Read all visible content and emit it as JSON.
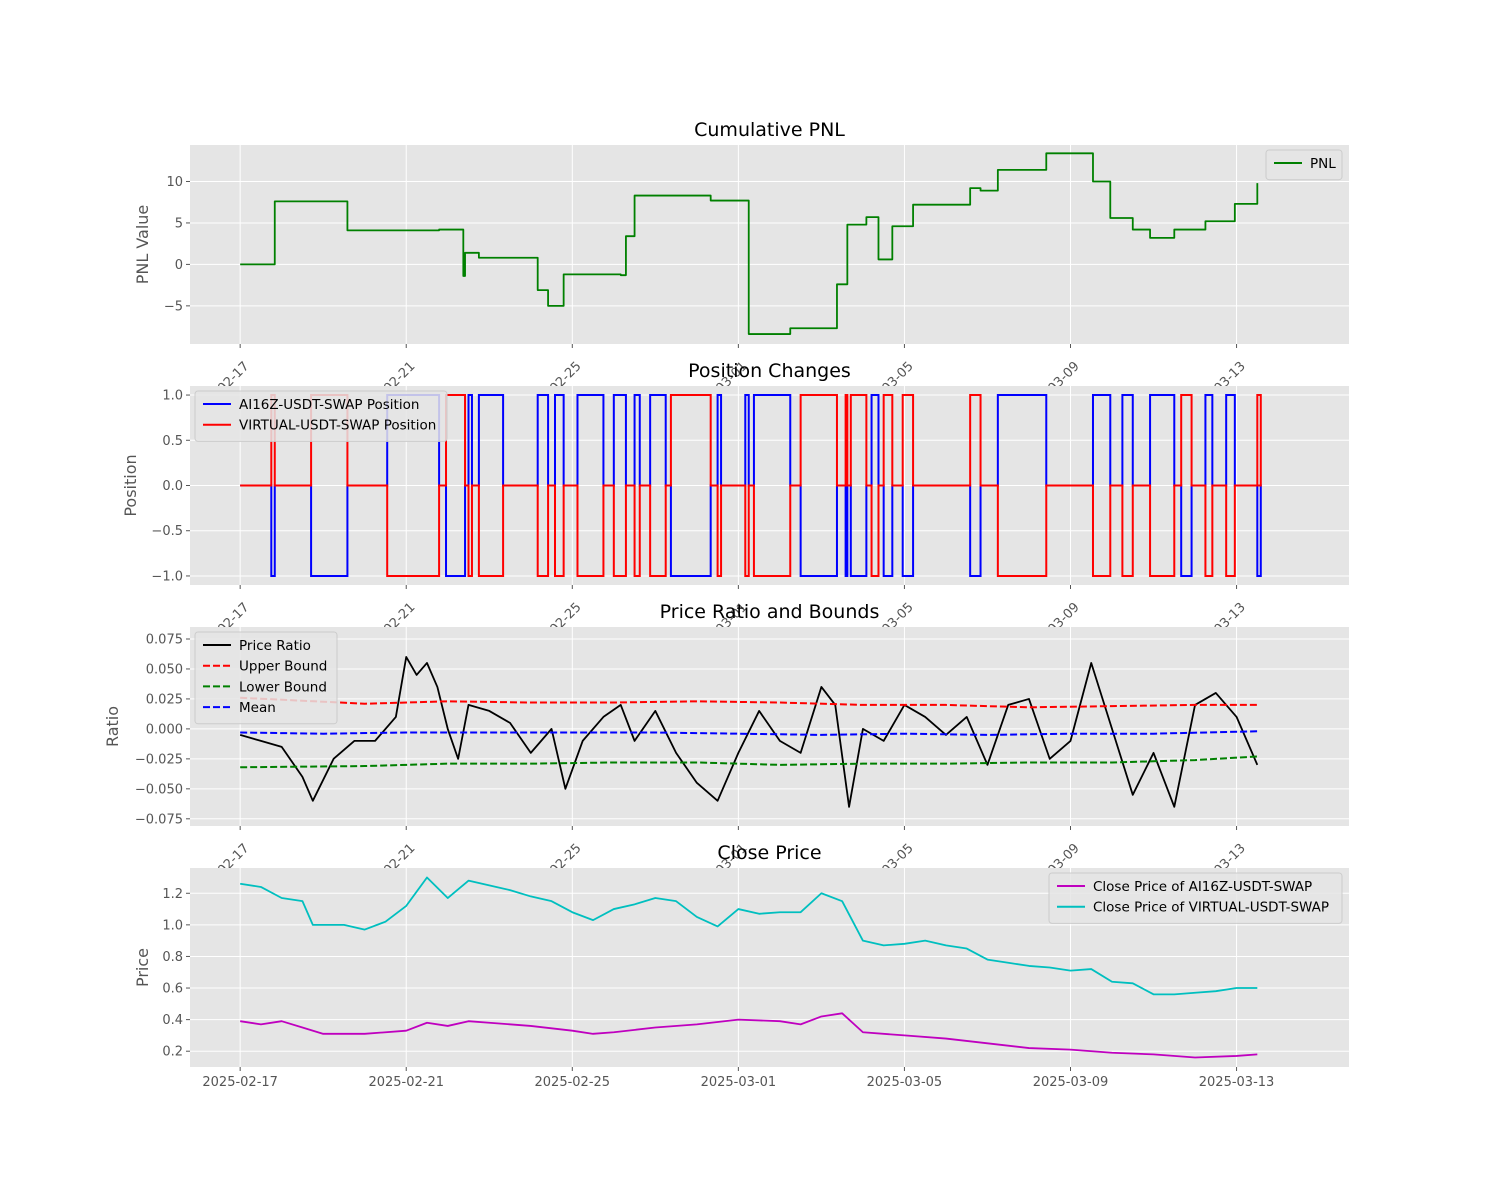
{
  "chart_data": [
    {
      "type": "line",
      "title": "Cumulative PNL",
      "xlabel": "",
      "ylabel": "PNL Value",
      "ylim": [
        -9.6,
        14.4
      ],
      "yticks": [
        -5,
        0,
        5,
        10
      ],
      "ytick_labels": [
        "−5",
        "0",
        "5",
        "10"
      ],
      "legend": "top-right",
      "grid": true,
      "series": [
        {
          "name": "PNL",
          "color": "#008000",
          "style": "step",
          "x": [
            "2025-02-17T00:00",
            "2025-02-17T20:00",
            "2025-02-19T14:00",
            "2025-02-21T19:00",
            "2025-02-22T09:00",
            "2025-02-22T10:00",
            "2025-02-22T18:00",
            "2025-02-23T08:00",
            "2025-02-24T04:00",
            "2025-02-24T10:00",
            "2025-02-24T19:00",
            "2025-02-26T04:00",
            "2025-02-26T07:00",
            "2025-02-26T12:00",
            "2025-02-28T08:00",
            "2025-02-28T12:00",
            "2025-03-01T06:00",
            "2025-03-02T06:00",
            "2025-03-03T09:00",
            "2025-03-03T15:00",
            "2025-03-04T02:00",
            "2025-03-04T09:00",
            "2025-03-04T17:00",
            "2025-03-05T05:00",
            "2025-03-06T14:00",
            "2025-03-06T20:00",
            "2025-03-07T06:00",
            "2025-03-08T10:00",
            "2025-03-09T13:00",
            "2025-03-09T23:00",
            "2025-03-10T12:00",
            "2025-03-10T22:00",
            "2025-03-11T12:00",
            "2025-03-12T06:00",
            "2025-03-12T23:00",
            "2025-03-13T12:00"
          ],
          "y": [
            0,
            7.6,
            4.1,
            4.2,
            -1.4,
            1.4,
            0.8,
            0.8,
            -3.1,
            -5,
            -1.2,
            -1.3,
            3.4,
            8.3,
            7.7,
            7.7,
            -8.4,
            -7.7,
            -2.4,
            4.8,
            5.7,
            0.6,
            4.6,
            7.2,
            9.2,
            8.9,
            11.4,
            13.4,
            10,
            5.6,
            4.2,
            3.2,
            4.2,
            5.2,
            7.3,
            9.8
          ]
        }
      ]
    },
    {
      "type": "line",
      "title": "Position Changes",
      "xlabel": "",
      "ylabel": "Position",
      "ylim": [
        -1.1,
        1.1
      ],
      "yticks": [
        -1.0,
        -0.5,
        0.0,
        0.5,
        1.0
      ],
      "ytick_labels": [
        "−1.0",
        "−0.5",
        "0.0",
        "0.5",
        "1.0"
      ],
      "legend": "top-left",
      "grid": true,
      "intervals": [
        [
          "2025-02-17T18:00",
          "2025-02-17T20:00",
          -1
        ],
        [
          "2025-02-18T17:00",
          "2025-02-19T14:00",
          -1
        ],
        [
          "2025-02-20T13:00",
          "2025-02-21T19:00",
          1
        ],
        [
          "2025-02-21T23:00",
          "2025-02-22T10:00",
          -1
        ],
        [
          "2025-02-22T12:00",
          "2025-02-22T14:00",
          1
        ],
        [
          "2025-02-22T18:00",
          "2025-02-23T08:00",
          1
        ],
        [
          "2025-02-24T04:00",
          "2025-02-24T10:00",
          1
        ],
        [
          "2025-02-24T14:00",
          "2025-02-24T19:00",
          1
        ],
        [
          "2025-02-25T03:00",
          "2025-02-25T18:00",
          1
        ],
        [
          "2025-02-26T00:00",
          "2025-02-26T07:00",
          1
        ],
        [
          "2025-02-26T12:00",
          "2025-02-26T15:00",
          1
        ],
        [
          "2025-02-26T21:00",
          "2025-02-27T06:00",
          1
        ],
        [
          "2025-02-27T09:00",
          "2025-02-28T08:00",
          -1
        ],
        [
          "2025-02-28T12:00",
          "2025-02-28T14:00",
          1
        ],
        [
          "2025-03-01T04:00",
          "2025-03-01T06:00",
          1
        ],
        [
          "2025-03-01T09:00",
          "2025-03-02T06:00",
          1
        ],
        [
          "2025-03-02T12:00",
          "2025-03-03T09:00",
          -1
        ],
        [
          "2025-03-03T14:00",
          "2025-03-03T15:00",
          -1
        ],
        [
          "2025-03-03T17:00",
          "2025-03-04T02:00",
          -1
        ],
        [
          "2025-03-04T05:00",
          "2025-03-04T09:00",
          1
        ],
        [
          "2025-03-04T12:00",
          "2025-03-04T17:00",
          -1
        ],
        [
          "2025-03-04T23:00",
          "2025-03-05T05:00",
          -1
        ],
        [
          "2025-03-06T14:00",
          "2025-03-06T20:00",
          -1
        ],
        [
          "2025-03-07T06:00",
          "2025-03-08T10:00",
          1
        ],
        [
          "2025-03-09T13:00",
          "2025-03-09T23:00",
          1
        ],
        [
          "2025-03-10T06:00",
          "2025-03-10T12:00",
          1
        ],
        [
          "2025-03-10T22:00",
          "2025-03-11T12:00",
          1
        ],
        [
          "2025-03-11T16:00",
          "2025-03-11T22:00",
          -1
        ],
        [
          "2025-03-12T06:00",
          "2025-03-12T10:00",
          1
        ],
        [
          "2025-03-12T18:00",
          "2025-03-12T23:00",
          1
        ],
        [
          "2025-03-13T12:00",
          "2025-03-13T14:00",
          -1
        ]
      ],
      "series": [
        {
          "name": "AI16Z-USDT-SWAP Position",
          "color": "#0000ff",
          "sign": 1
        },
        {
          "name": "VIRTUAL-USDT-SWAP Position",
          "color": "#ff0000",
          "sign": -1
        }
      ]
    },
    {
      "type": "line",
      "title": "Price Ratio and Bounds",
      "xlabel": "",
      "ylabel": "Ratio",
      "ylim": [
        -0.081,
        0.085
      ],
      "yticks": [
        -0.075,
        -0.05,
        -0.025,
        0.0,
        0.025,
        0.05,
        0.075
      ],
      "ytick_labels": [
        "−0.075",
        "−0.050",
        "−0.025",
        "0.000",
        "0.025",
        "0.050",
        "0.075"
      ],
      "legend": "top-left",
      "grid": true,
      "series": [
        {
          "name": "Price Ratio",
          "color": "#000000",
          "style": "solid",
          "x": [
            "2025-02-17T00:00",
            "2025-02-17T12:00",
            "2025-02-18T00:00",
            "2025-02-18T12:00",
            "2025-02-18T18:00",
            "2025-02-19T06:00",
            "2025-02-19T18:00",
            "2025-02-20T06:00",
            "2025-02-20T18:00",
            "2025-02-21T00:00",
            "2025-02-21T06:00",
            "2025-02-21T12:00",
            "2025-02-21T18:00",
            "2025-02-22T00:00",
            "2025-02-22T06:00",
            "2025-02-22T12:00",
            "2025-02-23T00:00",
            "2025-02-23T12:00",
            "2025-02-24T00:00",
            "2025-02-24T12:00",
            "2025-02-24T20:00",
            "2025-02-25T06:00",
            "2025-02-25T18:00",
            "2025-02-26T04:00",
            "2025-02-26T12:00",
            "2025-02-27T00:00",
            "2025-02-27T12:00",
            "2025-02-28T00:00",
            "2025-02-28T12:00",
            "2025-03-01T00:00",
            "2025-03-01T12:00",
            "2025-03-02T00:00",
            "2025-03-02T12:00",
            "2025-03-03T00:00",
            "2025-03-03T08:00",
            "2025-03-03T16:00",
            "2025-03-04T00:00",
            "2025-03-04T12:00",
            "2025-03-05T00:00",
            "2025-03-05T12:00",
            "2025-03-06T00:00",
            "2025-03-06T12:00",
            "2025-03-07T00:00",
            "2025-03-07T12:00",
            "2025-03-08T00:00",
            "2025-03-08T12:00",
            "2025-03-09T00:00",
            "2025-03-09T12:00",
            "2025-03-10T00:00",
            "2025-03-10T12:00",
            "2025-03-11T00:00",
            "2025-03-11T12:00",
            "2025-03-12T00:00",
            "2025-03-12T12:00",
            "2025-03-13T00:00",
            "2025-03-13T12:00"
          ],
          "y": [
            -0.005,
            -0.01,
            -0.015,
            -0.04,
            -0.06,
            -0.025,
            -0.01,
            -0.01,
            0.01,
            0.06,
            0.045,
            0.055,
            0.035,
            0.0,
            -0.025,
            0.02,
            0.015,
            0.005,
            -0.02,
            0.0,
            -0.05,
            -0.01,
            0.01,
            0.02,
            -0.01,
            0.015,
            -0.02,
            -0.045,
            -0.06,
            -0.02,
            0.015,
            -0.01,
            -0.02,
            0.035,
            0.02,
            -0.065,
            0.0,
            -0.01,
            0.02,
            0.01,
            -0.005,
            0.01,
            -0.03,
            0.02,
            0.025,
            -0.025,
            -0.01,
            0.055,
            0.0,
            -0.055,
            -0.02,
            -0.065,
            0.02,
            0.03,
            0.01,
            -0.03
          ]
        },
        {
          "name": "Upper Bound",
          "color": "#ff0000",
          "style": "dashed",
          "x": [
            "2025-02-17T00:00",
            "2025-02-20T00:00",
            "2025-02-22T00:00",
            "2025-02-24T00:00",
            "2025-02-26T00:00",
            "2025-02-28T00:00",
            "2025-03-02T00:00",
            "2025-03-04T00:00",
            "2025-03-06T00:00",
            "2025-03-08T00:00",
            "2025-03-10T00:00",
            "2025-03-12T00:00",
            "2025-03-13T12:00"
          ],
          "y": [
            0.026,
            0.021,
            0.023,
            0.022,
            0.022,
            0.023,
            0.022,
            0.02,
            0.02,
            0.018,
            0.019,
            0.02,
            0.02
          ]
        },
        {
          "name": "Lower Bound",
          "color": "#008000",
          "style": "dashed",
          "x": [
            "2025-02-17T00:00",
            "2025-02-20T00:00",
            "2025-02-22T00:00",
            "2025-02-24T00:00",
            "2025-02-26T00:00",
            "2025-02-28T00:00",
            "2025-03-02T00:00",
            "2025-03-04T00:00",
            "2025-03-06T00:00",
            "2025-03-08T00:00",
            "2025-03-10T00:00",
            "2025-03-12T00:00",
            "2025-03-13T12:00"
          ],
          "y": [
            -0.032,
            -0.031,
            -0.029,
            -0.029,
            -0.028,
            -0.028,
            -0.03,
            -0.029,
            -0.029,
            -0.028,
            -0.028,
            -0.026,
            -0.023
          ]
        },
        {
          "name": "Mean",
          "color": "#0000ff",
          "style": "dashed",
          "x": [
            "2025-02-17T00:00",
            "2025-02-19T00:00",
            "2025-02-21T00:00",
            "2025-02-23T00:00",
            "2025-02-25T00:00",
            "2025-02-27T00:00",
            "2025-03-01T00:00",
            "2025-03-03T00:00",
            "2025-03-05T00:00",
            "2025-03-07T00:00",
            "2025-03-09T00:00",
            "2025-03-11T00:00",
            "2025-03-13T12:00"
          ],
          "y": [
            -0.003,
            -0.004,
            -0.003,
            -0.003,
            -0.003,
            -0.003,
            -0.004,
            -0.005,
            -0.004,
            -0.005,
            -0.004,
            -0.004,
            -0.002
          ]
        }
      ]
    },
    {
      "type": "line",
      "title": "Close Price",
      "xlabel": "",
      "ylabel": "Price",
      "ylim": [
        0.1,
        1.36
      ],
      "yticks": [
        0.2,
        0.4,
        0.6,
        0.8,
        1.0,
        1.2
      ],
      "ytick_labels": [
        "0.2",
        "0.4",
        "0.6",
        "0.8",
        "1.0",
        "1.2"
      ],
      "legend": "top-right",
      "grid": true,
      "series": [
        {
          "name": "Close Price of AI16Z-USDT-SWAP",
          "color": "#bf00bf",
          "style": "solid",
          "x": [
            "2025-02-17T00:00",
            "2025-02-17T12:00",
            "2025-02-18T00:00",
            "2025-02-18T12:00",
            "2025-02-19T00:00",
            "2025-02-20T00:00",
            "2025-02-21T00:00",
            "2025-02-21T12:00",
            "2025-02-22T00:00",
            "2025-02-22T12:00",
            "2025-02-23T00:00",
            "2025-02-24T00:00",
            "2025-02-25T00:00",
            "2025-02-25T12:00",
            "2025-02-26T00:00",
            "2025-02-27T00:00",
            "2025-02-28T00:00",
            "2025-03-01T00:00",
            "2025-03-02T00:00",
            "2025-03-02T12:00",
            "2025-03-03T00:00",
            "2025-03-03T12:00",
            "2025-03-04T00:00",
            "2025-03-05T00:00",
            "2025-03-06T00:00",
            "2025-03-07T00:00",
            "2025-03-08T00:00",
            "2025-03-09T00:00",
            "2025-03-10T00:00",
            "2025-03-11T00:00",
            "2025-03-12T00:00",
            "2025-03-13T00:00",
            "2025-03-13T12:00"
          ],
          "y": [
            0.39,
            0.37,
            0.39,
            0.35,
            0.31,
            0.31,
            0.33,
            0.38,
            0.36,
            0.39,
            0.38,
            0.36,
            0.33,
            0.31,
            0.32,
            0.35,
            0.37,
            0.4,
            0.39,
            0.37,
            0.42,
            0.44,
            0.32,
            0.3,
            0.28,
            0.25,
            0.22,
            0.21,
            0.19,
            0.18,
            0.16,
            0.17,
            0.18
          ]
        },
        {
          "name": "Close Price of VIRTUAL-USDT-SWAP",
          "color": "#00bfbf",
          "style": "solid",
          "x": [
            "2025-02-17T00:00",
            "2025-02-17T12:00",
            "2025-02-18T00:00",
            "2025-02-18T12:00",
            "2025-02-18T18:00",
            "2025-02-19T12:00",
            "2025-02-20T00:00",
            "2025-02-20T12:00",
            "2025-02-21T00:00",
            "2025-02-21T12:00",
            "2025-02-22T00:00",
            "2025-02-22T12:00",
            "2025-02-23T00:00",
            "2025-02-23T12:00",
            "2025-02-24T00:00",
            "2025-02-24T12:00",
            "2025-02-25T00:00",
            "2025-02-25T12:00",
            "2025-02-26T00:00",
            "2025-02-26T12:00",
            "2025-02-27T00:00",
            "2025-02-27T12:00",
            "2025-02-28T00:00",
            "2025-02-28T12:00",
            "2025-03-01T00:00",
            "2025-03-01T12:00",
            "2025-03-02T00:00",
            "2025-03-02T12:00",
            "2025-03-03T00:00",
            "2025-03-03T12:00",
            "2025-03-04T00:00",
            "2025-03-04T12:00",
            "2025-03-05T00:00",
            "2025-03-05T12:00",
            "2025-03-06T00:00",
            "2025-03-06T12:00",
            "2025-03-07T00:00",
            "2025-03-07T12:00",
            "2025-03-08T00:00",
            "2025-03-08T12:00",
            "2025-03-09T00:00",
            "2025-03-09T12:00",
            "2025-03-10T00:00",
            "2025-03-10T12:00",
            "2025-03-11T00:00",
            "2025-03-11T12:00",
            "2025-03-12T00:00",
            "2025-03-12T12:00",
            "2025-03-13T00:00",
            "2025-03-13T12:00"
          ],
          "y": [
            1.26,
            1.24,
            1.17,
            1.15,
            1.0,
            1.0,
            0.97,
            1.02,
            1.12,
            1.3,
            1.17,
            1.28,
            1.25,
            1.22,
            1.18,
            1.15,
            1.08,
            1.03,
            1.1,
            1.13,
            1.17,
            1.15,
            1.05,
            0.99,
            1.1,
            1.07,
            1.08,
            1.08,
            1.2,
            1.15,
            0.9,
            0.87,
            0.88,
            0.9,
            0.87,
            0.85,
            0.78,
            0.76,
            0.74,
            0.73,
            0.71,
            0.72,
            0.64,
            0.63,
            0.56,
            0.56,
            0.57,
            0.58,
            0.6,
            0.6
          ]
        }
      ]
    }
  ],
  "x_axis": {
    "start": "2025-02-17T00:00",
    "end": "2025-03-13T12:00",
    "xlim": [
      "2025-02-15T19:00",
      "2025-03-15T17:00"
    ],
    "ticks": [
      "2025-02-17",
      "2025-02-21",
      "2025-02-25",
      "2025-03-01",
      "2025-03-05",
      "2025-03-09",
      "2025-03-13"
    ],
    "tick_labels": [
      "2025-02-17",
      "2025-02-21",
      "2025-02-25",
      "2025-03-01",
      "2025-03-05",
      "2025-03-09",
      "2025-03-13"
    ]
  }
}
